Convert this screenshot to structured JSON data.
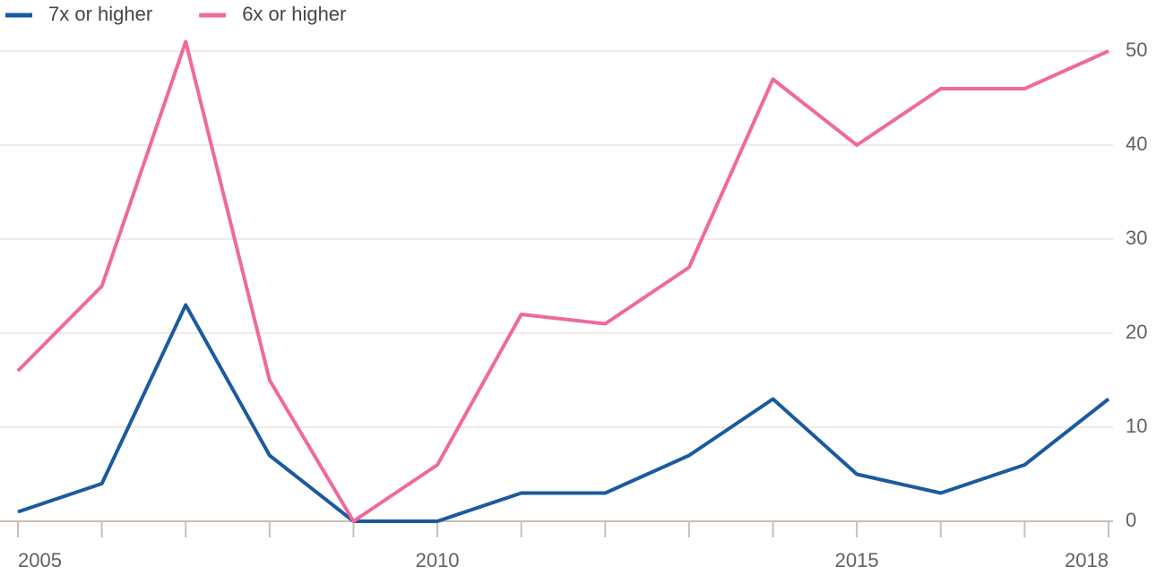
{
  "chart_data": {
    "type": "line",
    "x": [
      2005,
      2006,
      2007,
      2008,
      2009,
      2010,
      2011,
      2012,
      2013,
      2014,
      2015,
      2016,
      2017,
      2018
    ],
    "series": [
      {
        "name": "7x or higher",
        "color": "#1a5a9f",
        "values": [
          1,
          4,
          23,
          7,
          0,
          0,
          3,
          3,
          7,
          13,
          5,
          3,
          6,
          13
        ]
      },
      {
        "name": "6x or higher",
        "color": "#f0699a",
        "values": [
          16,
          25,
          51,
          15,
          0,
          6,
          22,
          21,
          27,
          47,
          40,
          46,
          46,
          50
        ]
      }
    ],
    "xlim": [
      2005,
      2018
    ],
    "xticks": [
      2005,
      2010,
      2015,
      2018
    ],
    "ylim": [
      0,
      50
    ],
    "yticks": [
      0,
      10,
      20,
      30,
      40,
      50
    ],
    "grid": true,
    "legend": "top-left",
    "y_axis_side": "right"
  }
}
